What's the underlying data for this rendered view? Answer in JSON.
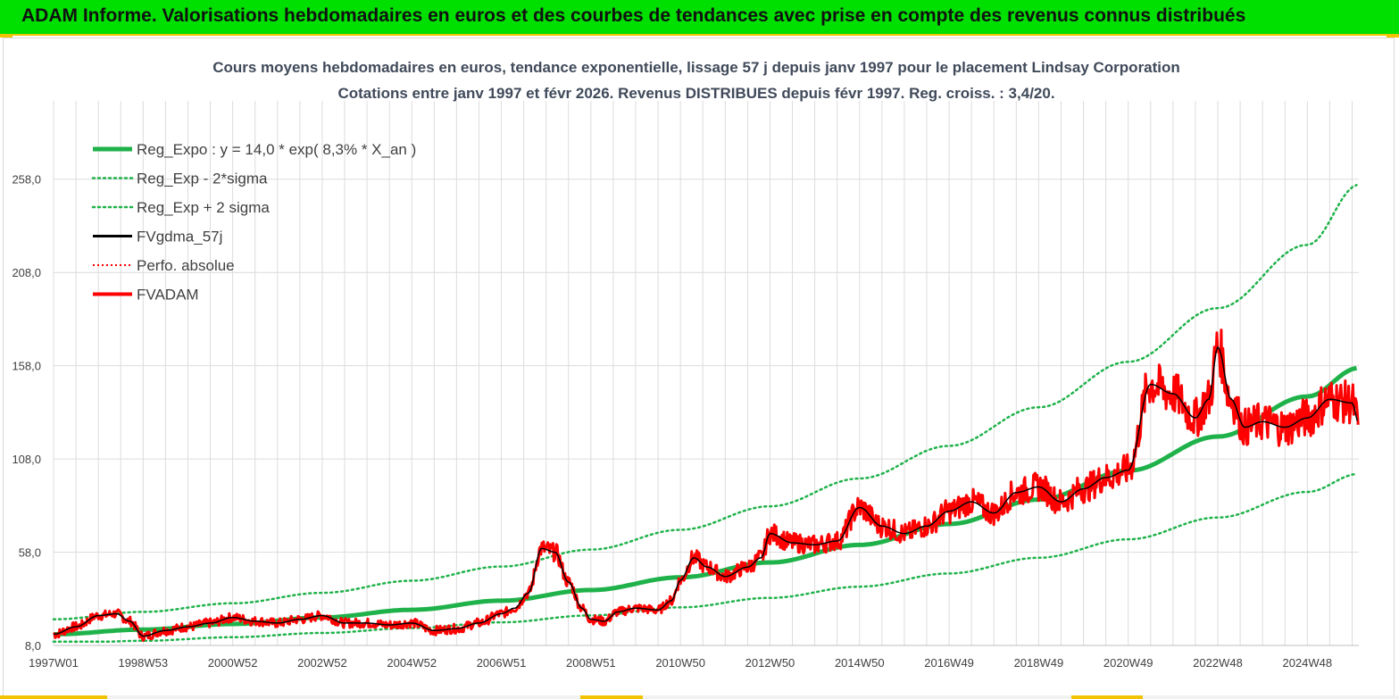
{
  "header": {
    "title": "ADAM Informe. Valorisations hebdomadaires en euros et des courbes de tendances avec prise en compte des revenus connus distribués"
  },
  "colors": {
    "banner": "#00e000",
    "accent": "#f2c200",
    "reg_expo": "#1fb24a",
    "sigma": "#1fb24a",
    "fvgdma": "#000000",
    "perfo": "#ff0000",
    "fvadam": "#ff0000",
    "grid": "#dcdcdc",
    "title_text": "#404a5a"
  },
  "chart_data": {
    "type": "line",
    "title_line1": "Cours moyens hebdomadaires en euros, tendance exponentielle, lissage 57 j depuis janv 1997 pour le placement Lindsay Corporation",
    "title_line2": "Cotations entre janv 1997 et févr 2026. Revenus DISTRIBUES depuis févr 1997. Reg. croiss. : 3,4/20.",
    "x_range": [
      1997.0,
      2026.15
    ],
    "x_ticks": [
      {
        "label": "1997W01",
        "x": 1997.0
      },
      {
        "label": "1998W53",
        "x": 1999.0
      },
      {
        "label": "2000W52",
        "x": 2001.0
      },
      {
        "label": "2002W52",
        "x": 2003.0
      },
      {
        "label": "2004W52",
        "x": 2005.0
      },
      {
        "label": "2006W51",
        "x": 2007.0
      },
      {
        "label": "2008W51",
        "x": 2009.0
      },
      {
        "label": "2010W50",
        "x": 2011.0
      },
      {
        "label": "2012W50",
        "x": 2013.0
      },
      {
        "label": "2014W50",
        "x": 2015.0
      },
      {
        "label": "2016W49",
        "x": 2017.0
      },
      {
        "label": "2018W49",
        "x": 2019.0
      },
      {
        "label": "2020W49",
        "x": 2021.0
      },
      {
        "label": "2022W48",
        "x": 2023.0
      },
      {
        "label": "2024W48",
        "x": 2025.0
      }
    ],
    "y_range": [
      8,
      300
    ],
    "y_ticks": [
      {
        "label": "8,0",
        "y": 8
      },
      {
        "label": "58,0",
        "y": 58
      },
      {
        "label": "108,0",
        "y": 108
      },
      {
        "label": "158,0",
        "y": 158
      },
      {
        "label": "208,0",
        "y": 208
      },
      {
        "label": "258,0",
        "y": 258
      }
    ],
    "legend": {
      "position": "top-left",
      "entries": [
        {
          "key": "reg_expo",
          "label": "Reg_Expo : y = 14,0 * exp( 8,3% *  X_an )",
          "style": "thick-solid"
        },
        {
          "key": "sigma_low",
          "label": "Reg_Exp - 2*sigma",
          "style": "dotted"
        },
        {
          "key": "sigma_high",
          "label": "Reg_Exp + 2 sigma",
          "style": "dotted"
        },
        {
          "key": "fvgdma",
          "label": "FVgdma_57j",
          "style": "solid"
        },
        {
          "key": "perfo",
          "label": "Perfo. absolue",
          "style": "dotted"
        },
        {
          "key": "fvadam",
          "label": "FVADAM",
          "style": "thick-solid"
        }
      ]
    },
    "series": [
      {
        "key": "reg_expo",
        "x": [
          1997,
          1999,
          2001,
          2003,
          2005,
          2007,
          2009,
          2011,
          2013,
          2015,
          2017,
          2019,
          2021,
          2023,
          2025,
          2026.15
        ],
        "y": [
          14.0,
          16.5,
          19.5,
          23.0,
          27.1,
          32.0,
          37.7,
          44.5,
          52.5,
          61.9,
          73.1,
          86.2,
          101.7,
          120.0,
          141.5,
          156.8
        ]
      },
      {
        "key": "sigma_low",
        "x": [
          1997,
          1999,
          2001,
          2003,
          2005,
          2007,
          2009,
          2011,
          2013,
          2015,
          2017,
          2019,
          2021,
          2023,
          2025,
          2026.15
        ],
        "y": [
          8.9,
          10.5,
          12.4,
          14.7,
          17.3,
          20.4,
          24.1,
          28.4,
          33.5,
          39.5,
          46.6,
          55.0,
          64.9,
          76.6,
          90.3,
          100.0
        ]
      },
      {
        "key": "sigma_high",
        "x": [
          1997,
          1999,
          2001,
          2003,
          2005,
          2007,
          2009,
          2011,
          2013,
          2015,
          2017,
          2019,
          2021,
          2023,
          2025,
          2026.15
        ],
        "y": [
          22.0,
          26.0,
          30.6,
          36.2,
          42.7,
          50.3,
          59.4,
          70.0,
          82.6,
          97.5,
          115.0,
          135.7,
          160.1,
          188.9,
          222.8,
          255.0
        ]
      },
      {
        "key": "fvgdma",
        "x": [
          1997.0,
          1997.5,
          1998.0,
          1998.4,
          1998.7,
          1999.0,
          1999.5,
          2000.0,
          2000.5,
          2001.0,
          2001.5,
          2002.0,
          2002.5,
          2003.0,
          2003.5,
          2004.0,
          2004.5,
          2005.0,
          2005.5,
          2006.0,
          2006.5,
          2007.0,
          2007.3,
          2007.6,
          2007.9,
          2008.2,
          2008.5,
          2008.8,
          2009.0,
          2009.3,
          2009.6,
          2010.0,
          2010.5,
          2010.8,
          2011.0,
          2011.3,
          2011.6,
          2012.0,
          2012.5,
          2012.8,
          2013.0,
          2013.5,
          2014.0,
          2014.5,
          2015.0,
          2015.5,
          2016.0,
          2016.5,
          2017.0,
          2017.5,
          2018.0,
          2018.5,
          2019.0,
          2019.5,
          2020.0,
          2020.5,
          2021.0,
          2021.5,
          2022.0,
          2022.5,
          2022.8,
          2023.0,
          2023.3,
          2023.6,
          2024.0,
          2024.5,
          2025.0,
          2025.5,
          2026.0,
          2026.15
        ],
        "y": [
          14,
          18,
          24,
          25,
          21,
          13,
          16,
          18,
          20,
          23,
          21,
          20,
          22,
          24,
          20,
          20,
          19,
          20,
          16,
          17,
          20,
          25,
          28,
          36,
          60,
          58,
          42,
          28,
          22,
          21,
          26,
          28,
          27,
          32,
          43,
          55,
          50,
          45,
          50,
          55,
          68,
          63,
          62,
          64,
          82,
          72,
          68,
          72,
          80,
          85,
          79,
          90,
          93,
          85,
          92,
          98,
          102,
          148,
          143,
          130,
          140,
          168,
          140,
          125,
          128,
          125,
          130,
          140,
          138,
          127
        ],
        "smooth": true
      },
      {
        "key": "fvadam",
        "x": [
          1997.0,
          1997.5,
          1998.0,
          1998.4,
          1998.7,
          1999.0,
          1999.5,
          2000.0,
          2000.5,
          2001.0,
          2001.5,
          2002.0,
          2002.5,
          2003.0,
          2003.5,
          2004.0,
          2004.5,
          2005.0,
          2005.5,
          2006.0,
          2006.5,
          2007.0,
          2007.3,
          2007.6,
          2007.9,
          2008.2,
          2008.5,
          2008.8,
          2009.0,
          2009.3,
          2009.6,
          2010.0,
          2010.5,
          2010.8,
          2011.0,
          2011.3,
          2011.6,
          2012.0,
          2012.5,
          2012.8,
          2013.0,
          2013.5,
          2014.0,
          2014.5,
          2015.0,
          2015.5,
          2016.0,
          2016.5,
          2017.0,
          2017.5,
          2018.0,
          2018.5,
          2019.0,
          2019.5,
          2020.0,
          2020.5,
          2021.0,
          2021.5,
          2022.0,
          2022.5,
          2022.8,
          2023.0,
          2023.3,
          2023.6,
          2024.0,
          2024.5,
          2025.0,
          2025.5,
          2026.0,
          2026.15
        ],
        "y": [
          14,
          18,
          24,
          25,
          21,
          13,
          16,
          18,
          20,
          23,
          21,
          20,
          22,
          24,
          20,
          20,
          19,
          20,
          16,
          17,
          20,
          25,
          28,
          36,
          60,
          58,
          42,
          28,
          22,
          21,
          26,
          28,
          27,
          32,
          43,
          55,
          50,
          45,
          50,
          55,
          68,
          63,
          62,
          64,
          82,
          72,
          68,
          72,
          80,
          85,
          79,
          90,
          93,
          85,
          92,
          98,
          102,
          148,
          143,
          130,
          140,
          168,
          140,
          125,
          128,
          125,
          130,
          140,
          138,
          127
        ],
        "noisy": true
      }
    ]
  }
}
